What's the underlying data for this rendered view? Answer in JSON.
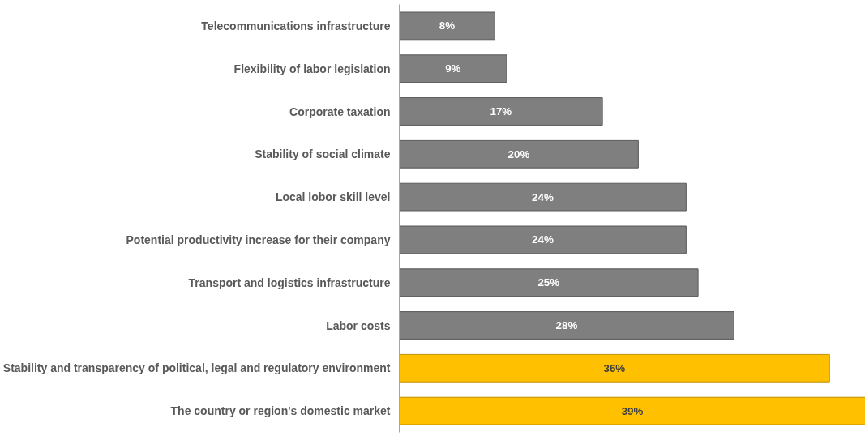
{
  "chart_data": {
    "type": "bar",
    "orientation": "horizontal",
    "categories": [
      "Telecommunications infrastructure",
      "Flexibility of labor legislation",
      "Corporate taxation",
      "Stability of social climate",
      "Local lobor skill level",
      "Potential productivity increase for their company",
      "Transport and logistics infrastructure",
      "Labor costs",
      "Stability and transparency of political, legal and regulatory environment",
      "The country or region's domestic market"
    ],
    "values": [
      8,
      9,
      17,
      20,
      24,
      24,
      25,
      28,
      36,
      39
    ],
    "value_labels": [
      "8%",
      "9%",
      "17%",
      "20%",
      "24%",
      "24%",
      "25%",
      "28%",
      "36%",
      "39%"
    ],
    "colors": [
      "#7f7f7f",
      "#7f7f7f",
      "#7f7f7f",
      "#7f7f7f",
      "#7f7f7f",
      "#7f7f7f",
      "#7f7f7f",
      "#7f7f7f",
      "#ffc000",
      "#ffc000"
    ],
    "grid": false
  }
}
